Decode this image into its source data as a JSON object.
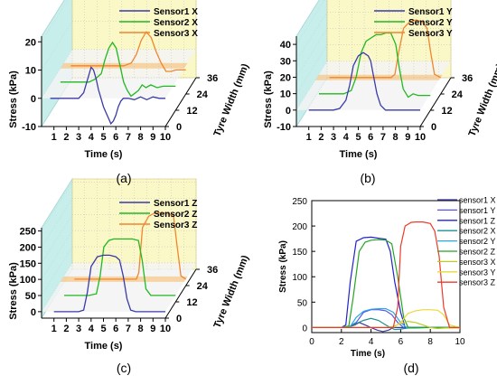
{
  "figure": {
    "panels": [
      {
        "id": "a",
        "caption": "(a)"
      },
      {
        "id": "b",
        "caption": "(b)"
      },
      {
        "id": "c",
        "caption": "(c)"
      },
      {
        "id": "d",
        "caption": "(d)"
      }
    ]
  },
  "colors": {
    "sensor1": "#3b3ba8",
    "sensor2": "#22b822",
    "sensor3": "#f0862e",
    "floor_band": "#f5b865",
    "back_wall": "#fbf8c8",
    "side_wall": "#c8eeec",
    "s1x": "#3a3aa0",
    "s1y": "#5555ee",
    "s1z": "#2222cc",
    "s2x": "#1f8f8f",
    "s2y": "#2aa7e6",
    "s2z": "#22a522",
    "s3x": "#bbcc22",
    "s3y": "#ecd73a",
    "s3z": "#ee3a2a"
  },
  "chart_data": [
    {
      "id": "a",
      "type": "line",
      "ylabel": "Stress (kPa)",
      "xlabel": "Time (s)",
      "zlabel": "Tyre Width (mm)",
      "xticks": [
        "1",
        "2",
        "3",
        "4",
        "5",
        "6",
        "7",
        "8",
        "9",
        "10"
      ],
      "yticks": [
        "-10",
        "0",
        "10",
        "20"
      ],
      "zticks": [
        "0",
        "12",
        "24",
        "36"
      ],
      "xlim": [
        0,
        10
      ],
      "ylim": [
        -10,
        22
      ],
      "zlim": [
        0,
        36
      ],
      "series": [
        {
          "name": "Sensor1 X",
          "color_key": "sensor1",
          "z": 0,
          "x": [
            0.7,
            1.0,
            2.0,
            3.0,
            3.4,
            3.8,
            4.0,
            4.2,
            4.4,
            4.6,
            4.8,
            5.0,
            5.2,
            5.4,
            5.6,
            5.8,
            6.0,
            6.2,
            6.4,
            6.6,
            7.0,
            7.5,
            8.0,
            8.5,
            9.0,
            9.5,
            10.0
          ],
          "y": [
            0,
            0,
            0,
            0,
            2,
            8,
            11,
            10,
            7,
            3,
            0,
            -3,
            -5,
            -7,
            -9,
            -8,
            -6,
            -3,
            -1,
            0,
            0,
            -0.5,
            0.5,
            -0.5,
            0.5,
            0,
            0
          ]
        },
        {
          "name": "Sensor2 X",
          "color_key": "sensor2",
          "z": 12,
          "x": [
            0.7,
            2.0,
            3.0,
            3.5,
            4.0,
            4.3,
            4.6,
            4.9,
            5.2,
            5.5,
            5.8,
            6.1,
            6.4,
            6.7,
            7.0,
            7.3,
            7.6,
            8.0,
            8.5,
            9.0,
            9.5,
            10.0
          ],
          "y": [
            0,
            0,
            0,
            1,
            3,
            8,
            12,
            14,
            12,
            6,
            0,
            -3,
            -5,
            -4,
            -3,
            -1,
            -2,
            -1,
            -2,
            -1.5,
            -1.5,
            -1.5
          ]
        },
        {
          "name": "Sensor3 X",
          "color_key": "sensor3",
          "z": 24,
          "x": [
            0.7,
            2.0,
            3.0,
            4.0,
            5.0,
            5.6,
            6.0,
            6.4,
            6.8,
            7.2,
            7.6,
            8.0,
            8.4,
            8.8,
            9.2,
            9.6,
            10.0
          ],
          "y": [
            0,
            0,
            0,
            0,
            0,
            1,
            4,
            9,
            12,
            10,
            5,
            1,
            -2,
            -2,
            -1.5,
            -1.5,
            -1.5
          ]
        }
      ]
    },
    {
      "id": "b",
      "type": "line",
      "ylabel": "Stress (kPa)",
      "xlabel": "Time (s)",
      "zlabel": "Tyre Width (mm)",
      "xticks": [
        "1",
        "2",
        "3",
        "4",
        "5",
        "6",
        "7",
        "8",
        "9",
        "10"
      ],
      "yticks": [
        "-10",
        "0",
        "10",
        "20",
        "30",
        "40"
      ],
      "zticks": [
        "0",
        "12",
        "24",
        "36"
      ],
      "xlim": [
        0,
        10
      ],
      "ylim": [
        -10,
        45
      ],
      "zlim": [
        0,
        36
      ],
      "series": [
        {
          "name": "Sensor1 Y",
          "color_key": "sensor1",
          "z": 0,
          "x": [
            1.0,
            2.0,
            3.0,
            3.5,
            4.0,
            4.3,
            4.6,
            5.0,
            5.4,
            5.8,
            6.0,
            6.2,
            6.5,
            6.8,
            7.2,
            7.6,
            8.0,
            9.0,
            10.0
          ],
          "y": [
            0,
            0,
            0,
            1,
            6,
            15,
            27,
            33,
            35,
            33,
            30,
            22,
            10,
            3,
            0,
            0,
            0,
            0,
            0
          ]
        },
        {
          "name": "Sensor2 Y",
          "color_key": "sensor2",
          "z": 12,
          "x": [
            1.0,
            2.0,
            3.0,
            3.6,
            4.0,
            4.4,
            4.8,
            5.2,
            5.6,
            6.0,
            6.4,
            6.8,
            7.2,
            7.5,
            7.8,
            8.2,
            8.6,
            9.0,
            9.5,
            10.0
          ],
          "y": [
            0,
            0,
            0,
            2,
            10,
            25,
            32,
            34,
            36,
            36,
            37,
            37,
            30,
            15,
            3,
            -2,
            0,
            -1,
            -1,
            -1
          ]
        },
        {
          "name": "Sensor3 Y",
          "color_key": "sensor3",
          "z": 24,
          "x": [
            1.0,
            3.0,
            5.0,
            6.0,
            6.3,
            6.6,
            7.0,
            7.5,
            8.0,
            8.5,
            8.9,
            9.2,
            9.5,
            10.0
          ],
          "y": [
            0,
            0,
            0,
            0,
            2,
            15,
            30,
            34,
            35,
            34,
            30,
            15,
            2,
            0
          ]
        }
      ]
    },
    {
      "id": "c",
      "type": "line",
      "ylabel": "Stress (kPa)",
      "xlabel": "Time (s)",
      "zlabel": "Tyre Width (mm)",
      "xticks": [
        "1",
        "2",
        "3",
        "4",
        "5",
        "6",
        "7",
        "8",
        "9",
        "10"
      ],
      "yticks": [
        "0",
        "50",
        "100",
        "150",
        "200",
        "250"
      ],
      "zticks": [
        "0",
        "12",
        "24",
        "36"
      ],
      "xlim": [
        0,
        10
      ],
      "ylim": [
        -20,
        260
      ],
      "zlim": [
        0,
        36
      ],
      "series": [
        {
          "name": "Sensor1 Z",
          "color_key": "sensor1",
          "z": 0,
          "x": [
            1.0,
            2.0,
            3.0,
            3.4,
            3.7,
            4.0,
            4.5,
            5.0,
            5.5,
            6.0,
            6.3,
            6.6,
            6.9,
            7.2,
            7.6,
            8.0,
            9.0,
            10.0
          ],
          "y": [
            0,
            0,
            0,
            5,
            60,
            140,
            170,
            175,
            175,
            170,
            160,
            110,
            40,
            5,
            0,
            0,
            0,
            0
          ]
        },
        {
          "name": "Sensor2 Z",
          "color_key": "sensor2",
          "z": 12,
          "x": [
            1.0,
            2.0,
            3.0,
            3.6,
            3.9,
            4.2,
            4.6,
            5.0,
            5.5,
            6.0,
            6.5,
            7.0,
            7.3,
            7.6,
            8.0,
            9.0,
            10.0
          ],
          "y": [
            0,
            0,
            0,
            5,
            60,
            150,
            170,
            175,
            175,
            175,
            175,
            170,
            110,
            20,
            0,
            0,
            0
          ]
        },
        {
          "name": "Sensor3 Z",
          "color_key": "sensor3",
          "z": 24,
          "x": [
            1.0,
            3.0,
            5.0,
            6.0,
            6.2,
            6.5,
            7.0,
            7.5,
            8.0,
            8.5,
            9.0,
            9.3,
            9.6,
            10.0
          ],
          "y": [
            0,
            0,
            0,
            0,
            20,
            160,
            195,
            205,
            205,
            205,
            195,
            100,
            10,
            0
          ]
        }
      ]
    },
    {
      "id": "d",
      "type": "line",
      "ylabel": "Stress (kPa)",
      "xlabel": "Time (s)",
      "xticks": [
        "0",
        "2",
        "4",
        "6",
        "8",
        "10"
      ],
      "yticks": [
        "0",
        "50",
        "100",
        "150",
        "200",
        "250"
      ],
      "xlim": [
        0,
        10
      ],
      "ylim": [
        -10,
        250
      ],
      "grid": false,
      "legend": "right",
      "series": [
        {
          "name": "sensor1 X",
          "color_key": "s1x",
          "x": [
            0,
            2,
            2.5,
            2.9,
            3.2,
            3.6,
            4.0,
            4.4,
            4.8,
            5.2,
            5.5,
            6,
            8,
            10
          ],
          "y": [
            0,
            0,
            1,
            5,
            10,
            5,
            0,
            -5,
            -8,
            -5,
            0,
            0,
            0,
            0
          ]
        },
        {
          "name": "sensor1 Y",
          "color_key": "s1y",
          "x": [
            0,
            2,
            2.5,
            3.0,
            3.5,
            4.0,
            4.5,
            5.0,
            5.4,
            5.8,
            6.2,
            8,
            10
          ],
          "y": [
            0,
            0,
            1,
            10,
            30,
            35,
            35,
            33,
            25,
            10,
            0,
            0,
            0
          ]
        },
        {
          "name": "sensor1 Z",
          "color_key": "s1z",
          "x": [
            0,
            2,
            2.3,
            2.6,
            3.0,
            3.5,
            4.0,
            4.5,
            5.0,
            5.3,
            5.6,
            6.0,
            6.3,
            8,
            10
          ],
          "y": [
            0,
            0,
            5,
            90,
            170,
            177,
            178,
            176,
            174,
            150,
            90,
            30,
            0,
            0,
            0
          ]
        },
        {
          "name": "sensor2 X",
          "color_key": "s2x",
          "x": [
            0,
            2,
            2.5,
            3.0,
            3.5,
            4.0,
            4.5,
            5.0,
            5.3,
            5.6,
            6.0,
            6.5,
            7,
            8,
            10
          ],
          "y": [
            0,
            0,
            1,
            8,
            14,
            18,
            14,
            5,
            0,
            -4,
            -3,
            -1,
            -1,
            0,
            0
          ]
        },
        {
          "name": "sensor2 Y",
          "color_key": "s2y",
          "x": [
            0,
            2,
            2.6,
            3.0,
            3.5,
            4.0,
            4.5,
            5.0,
            5.5,
            6.0,
            6.4,
            8,
            10
          ],
          "y": [
            0,
            0,
            2,
            20,
            32,
            36,
            37,
            37,
            30,
            10,
            0,
            0,
            0
          ]
        },
        {
          "name": "sensor2 Z",
          "color_key": "s2z",
          "x": [
            0,
            2,
            2.5,
            2.8,
            3.2,
            3.6,
            4.0,
            4.5,
            5.0,
            5.4,
            5.8,
            6.2,
            6.5,
            8,
            10
          ],
          "y": [
            0,
            0,
            3,
            60,
            150,
            168,
            172,
            173,
            172,
            165,
            100,
            20,
            0,
            0,
            0
          ]
        },
        {
          "name": "sensor3 X",
          "color_key": "s3x",
          "x": [
            0,
            2,
            4,
            5.0,
            5.5,
            6.0,
            6.5,
            7.0,
            7.5,
            8.0,
            8.5,
            9.0,
            10
          ],
          "y": [
            0,
            0,
            0,
            0,
            2,
            8,
            12,
            10,
            5,
            0,
            -2,
            -1,
            -1
          ]
        },
        {
          "name": "sensor3 Y",
          "color_key": "s3y",
          "x": [
            0,
            2,
            4,
            5.5,
            6.0,
            6.5,
            7.0,
            7.5,
            8.0,
            8.5,
            8.9,
            9.3,
            10
          ],
          "y": [
            0,
            0,
            0,
            0,
            10,
            28,
            33,
            35,
            35,
            34,
            25,
            5,
            0
          ]
        },
        {
          "name": "sensor3 Z",
          "color_key": "s3z",
          "x": [
            0,
            2,
            4,
            5.5,
            5.8,
            6.0,
            6.3,
            6.7,
            7.0,
            7.5,
            8.0,
            8.3,
            8.6,
            8.9,
            9.3,
            10
          ],
          "y": [
            0,
            0,
            0,
            0,
            40,
            160,
            200,
            207,
            208,
            208,
            205,
            190,
            140,
            40,
            0,
            0
          ]
        }
      ]
    }
  ]
}
